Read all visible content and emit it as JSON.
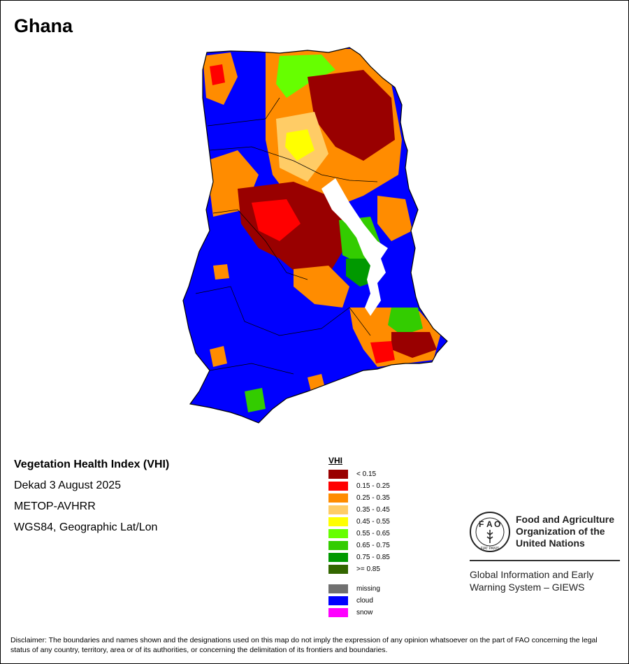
{
  "map": {
    "title": "Ghana",
    "index_name": "Vegetation Health Index (VHI)",
    "period": "Dekad 3 August 2025",
    "sensor": "METOP-AVHRR",
    "projection": "WGS84, Geographic Lat/Lon"
  },
  "legend": {
    "title": "VHI",
    "classes": [
      {
        "label": "< 0.15",
        "color": "#990000"
      },
      {
        "label": "0.15 - 0.25",
        "color": "#ff0000"
      },
      {
        "label": "0.25 - 0.35",
        "color": "#ff8c00"
      },
      {
        "label": "0.35 - 0.45",
        "color": "#ffcc66"
      },
      {
        "label": "0.45 - 0.55",
        "color": "#ffff00"
      },
      {
        "label": "0.55 - 0.65",
        "color": "#66ff00"
      },
      {
        "label": "0.65 - 0.75",
        "color": "#33cc00"
      },
      {
        "label": "0.75 - 0.85",
        "color": "#009900"
      },
      {
        "label": ">= 0.85",
        "color": "#336600"
      }
    ],
    "special": [
      {
        "label": "missing",
        "color": "#707070"
      },
      {
        "label": "cloud",
        "color": "#0000ff"
      },
      {
        "label": "snow",
        "color": "#ff00ff"
      }
    ]
  },
  "org": {
    "logo_letters": [
      "F",
      "A",
      "O"
    ],
    "logo_motto": "FIAT PANIS",
    "name_lines": [
      "Food and Agriculture",
      "Organization of the",
      "United Nations"
    ],
    "system_lines": [
      "Global Information and Early",
      "Warning System – GIEWS"
    ]
  },
  "disclaimer": "Disclaimer: The boundaries and names shown and the designations used on this map do not imply the expression of any opinion whatsoever on the part of FAO concerning the legal status of any country, territory, area or of its authorities, or concerning the delimitation of its frontiers and boundaries."
}
